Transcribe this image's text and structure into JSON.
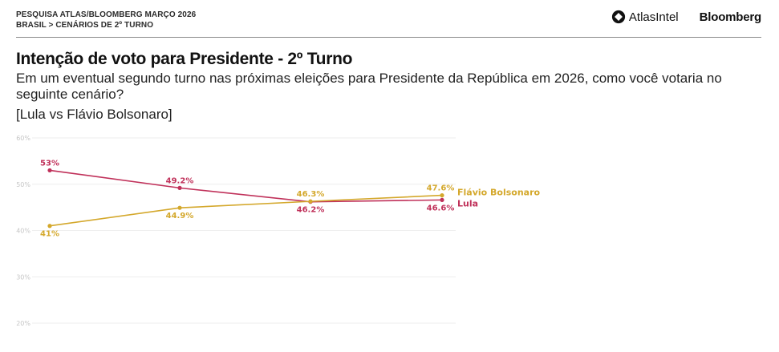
{
  "header": {
    "line1": "PESQUISA ATLAS/BLOOMBERG MARÇO 2026",
    "line2": "BRASIL > CENÁRIOS DE 2º TURNO",
    "brand_atlas": "AtlasIntel",
    "brand_atlas_icon": "atlasintel-logo-icon",
    "brand_bloomberg": "Bloomberg"
  },
  "title": "Intenção de voto para Presidente - 2º Turno",
  "subtitle": "Em um eventual segundo turno nas próximas eleições para Presidente da República em 2026, como você votaria no seguinte cenário?",
  "scenario": "[Lula vs Flávio Bolsonaro]",
  "colors": {
    "lula": "#c0315a",
    "flavio": "#d4a82c",
    "grid": "#eeeeee",
    "tick": "#c6c6c6"
  },
  "chart_data": {
    "type": "line",
    "title": "Intenção de voto para Presidente - 2º Turno",
    "xlabel": "",
    "ylabel": "",
    "x": [
      1,
      2,
      3,
      4
    ],
    "ylim": [
      20,
      60
    ],
    "yticks": [
      60,
      50,
      40,
      30,
      20
    ],
    "ytick_labels": [
      "60%",
      "50%",
      "40%",
      "30%",
      "20%"
    ],
    "grid": true,
    "legend": "right-end-labels",
    "series": [
      {
        "name": "Lula",
        "color": "#c0315a",
        "values": [
          53,
          49.2,
          46.2,
          46.6
        ],
        "labels": [
          "53%",
          "49.2%",
          "46.2%",
          "46.6%"
        ],
        "label_pos": [
          "above",
          "above",
          "below",
          "below"
        ]
      },
      {
        "name": "Flávio Bolsonaro",
        "color": "#d4a82c",
        "values": [
          41,
          44.9,
          46.3,
          47.6
        ],
        "labels": [
          "41%",
          "44.9%",
          "46.3%",
          "47.6%"
        ],
        "label_pos": [
          "below",
          "below",
          "above",
          "above"
        ]
      }
    ]
  }
}
